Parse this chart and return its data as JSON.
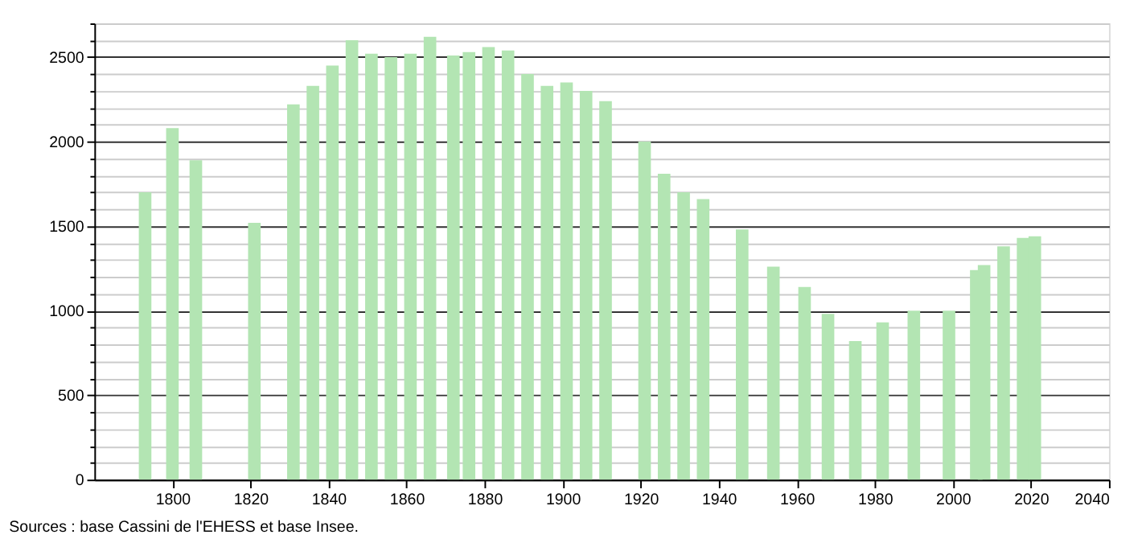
{
  "chart_data": {
    "type": "bar",
    "x": [
      1793,
      1800,
      1806,
      1821,
      1831,
      1836,
      1841,
      1846,
      1851,
      1856,
      1861,
      1866,
      1872,
      1876,
      1881,
      1886,
      1891,
      1896,
      1901,
      1906,
      1911,
      1921,
      1926,
      1931,
      1936,
      1946,
      1954,
      1962,
      1968,
      1975,
      1982,
      1990,
      1999,
      2006,
      2008,
      2013,
      2018,
      2021
    ],
    "values": [
      1700,
      2080,
      1890,
      1520,
      2220,
      2330,
      2450,
      2600,
      2520,
      2500,
      2520,
      2620,
      2510,
      2530,
      2560,
      2540,
      2400,
      2330,
      2350,
      2300,
      2240,
      2000,
      1810,
      1700,
      1660,
      1480,
      1260,
      1140,
      980,
      820,
      930,
      1000,
      1000,
      1240,
      1270,
      1380,
      1430,
      1440
    ],
    "color": "#b3e5b3",
    "xlim": [
      1780,
      2040
    ],
    "xticks": [
      1800,
      1820,
      1840,
      1860,
      1880,
      1900,
      1920,
      1940,
      1960,
      1980,
      2000,
      2020,
      2040
    ],
    "ylim": [
      0,
      2700
    ],
    "yticks": [
      0,
      {
        "value": 100,
        "label": null
      },
      {
        "value": 200,
        "label": null
      },
      {
        "value": 300,
        "label": null
      },
      {
        "value": 400,
        "label": null
      },
      500,
      {
        "value": 600,
        "label": null
      },
      {
        "value": 700,
        "label": null
      },
      {
        "value": 800,
        "label": null
      },
      {
        "value": 900,
        "label": null
      },
      1000,
      {
        "value": 1100,
        "label": null
      },
      {
        "value": 1200,
        "label": null
      },
      {
        "value": 1300,
        "label": null
      },
      {
        "value": 1400,
        "label": null
      },
      1500,
      {
        "value": 1600,
        "label": null
      },
      {
        "value": 1700,
        "label": null
      },
      {
        "value": 1800,
        "label": null
      },
      {
        "value": 1900,
        "label": null
      },
      2000,
      {
        "value": 2100,
        "label": null
      },
      {
        "value": 2200,
        "label": null
      },
      {
        "value": 2300,
        "label": null
      },
      {
        "value": 2400,
        "label": null
      },
      2500,
      {
        "value": 2600,
        "label": null
      },
      {
        "value": 2700,
        "label": null
      }
    ],
    "grid": "y",
    "annotations": [
      "Sources : base Cassini de l'EHESS et base Insee."
    ]
  }
}
